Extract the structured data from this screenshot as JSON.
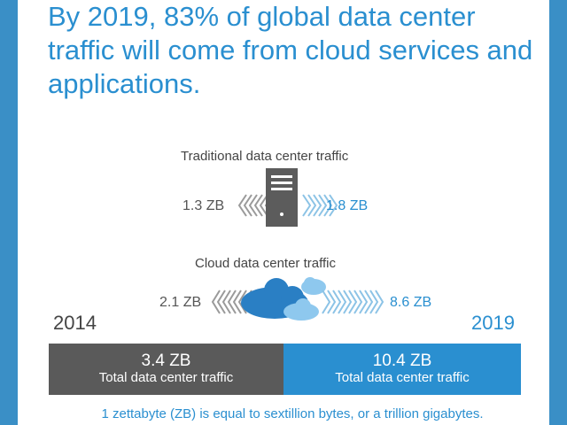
{
  "headline": "By 2019, 83% of global data center traffic will come from cloud services and applications.",
  "traditional": {
    "label": "Traditional data center traffic",
    "from_value": "1.3 ZB",
    "to_value": "1.8 ZB"
  },
  "cloud": {
    "label": "Cloud data center traffic",
    "from_value": "2.1 ZB",
    "to_value": "8.6 ZB"
  },
  "years": {
    "start": "2014",
    "end": "2019"
  },
  "totals": {
    "start": {
      "value": "3.4 ZB",
      "caption": "Total data center traffic"
    },
    "end": {
      "value": "10.4 ZB",
      "caption": "Total data center traffic"
    }
  },
  "footnote": "1 zettabyte (ZB) is equal to sextillion bytes, or a trillion gigabytes.",
  "colors": {
    "blue": "#2a8fd0",
    "gray": "#5a5a5a",
    "background": "#3a8fc6"
  }
}
